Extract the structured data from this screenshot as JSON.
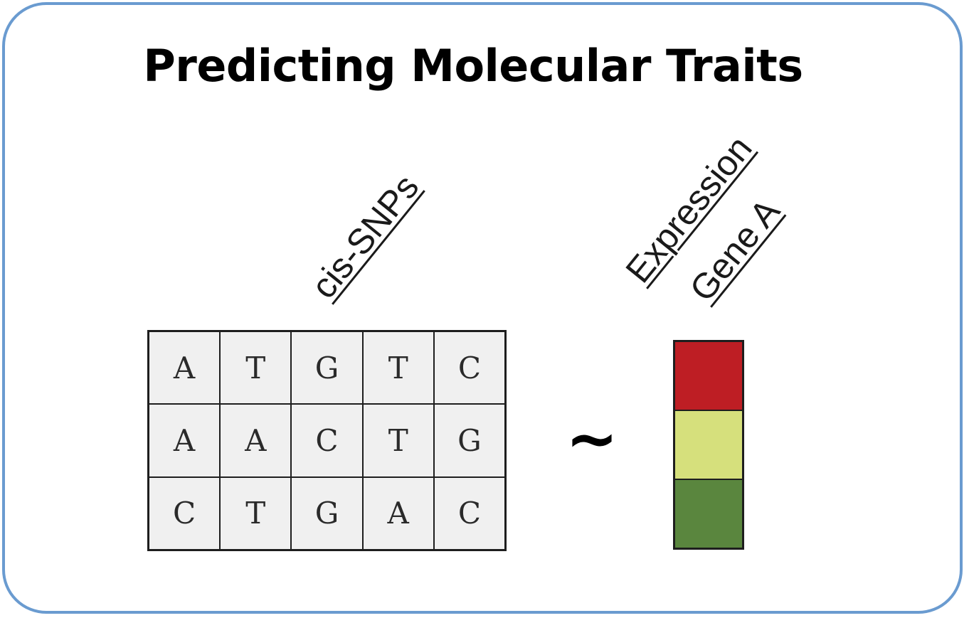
{
  "title": "Predicting Molecular Traits",
  "labels": {
    "snps": "cis-SNPs",
    "expression": "Expression",
    "gene": "Gene A"
  },
  "snp_matrix": [
    [
      "A",
      "T",
      "G",
      "T",
      "C"
    ],
    [
      "A",
      "A",
      "C",
      "T",
      "G"
    ],
    [
      "C",
      "T",
      "G",
      "A",
      "C"
    ]
  ],
  "relation_symbol": "~",
  "expression_levels": [
    {
      "color": "#be1e24"
    },
    {
      "color": "#d6e07c"
    },
    {
      "color": "#5a863e"
    }
  ],
  "colors": {
    "frame_border": "#6a9bd0",
    "cell_background": "#f0f0f0"
  }
}
